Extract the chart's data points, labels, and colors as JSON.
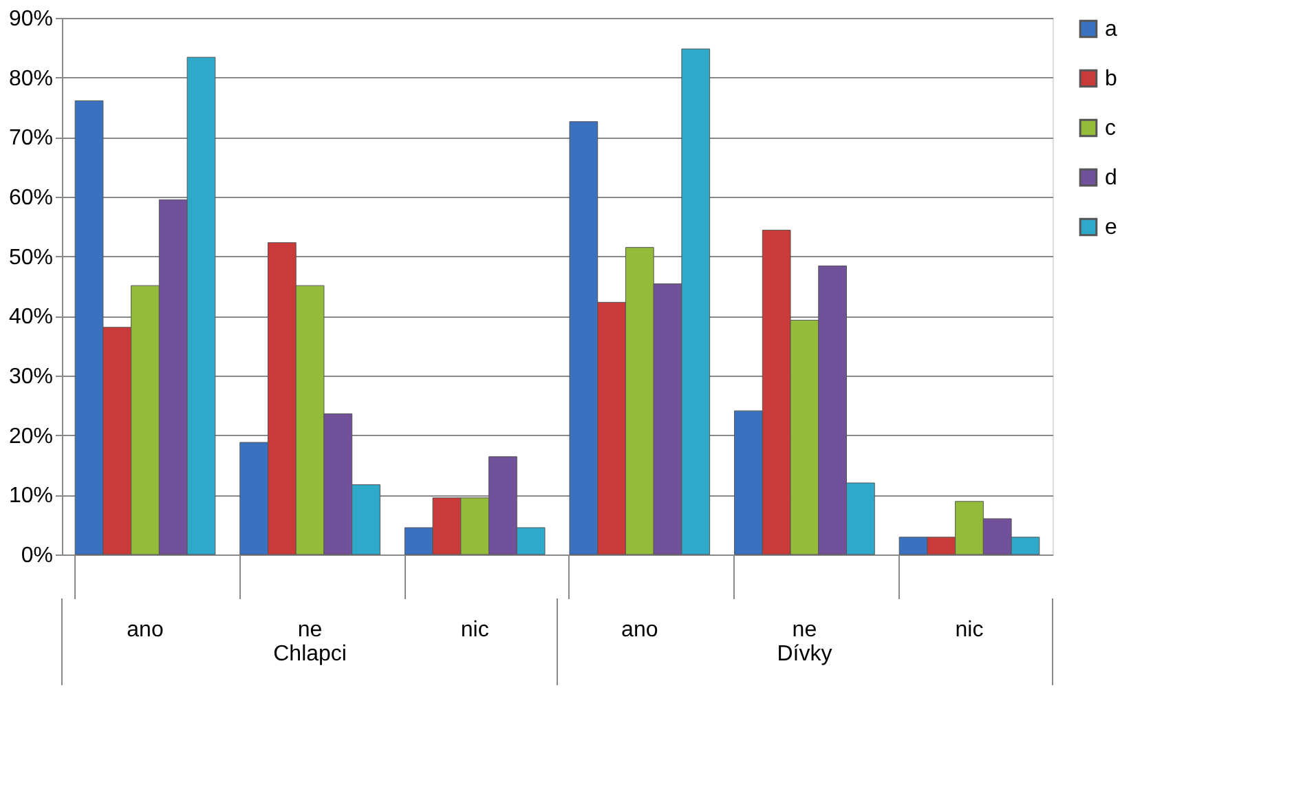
{
  "chart_data": {
    "type": "bar",
    "categories": [
      "ano",
      "ne",
      "nic",
      "ano",
      "ne",
      "nic"
    ],
    "series": [
      {
        "name": "a",
        "color": "#3a72c0",
        "values": [
          76.1,
          18.8,
          4.5,
          72.6,
          24.1,
          2.9
        ]
      },
      {
        "name": "b",
        "color": "#c93a38",
        "values": [
          38.1,
          52.3,
          9.5,
          42.3,
          54.4,
          2.9
        ]
      },
      {
        "name": "c",
        "color": "#94bb3a",
        "values": [
          45.1,
          45.1,
          9.5,
          51.5,
          39.3,
          8.9
        ]
      },
      {
        "name": "d",
        "color": "#71529a",
        "values": [
          59.5,
          23.6,
          16.4,
          45.4,
          48.4,
          6.0
        ]
      },
      {
        "name": "e",
        "color": "#2fa9c9",
        "values": [
          83.4,
          11.7,
          4.5,
          84.8,
          12.0,
          2.9
        ]
      }
    ],
    "annotations": [
      "Chlapci",
      "Dívky"
    ],
    "ylim": [
      0,
      90
    ],
    "yticks": [
      {
        "value": 0,
        "label": "0%"
      },
      {
        "value": 10,
        "label": "10%"
      },
      {
        "value": 20,
        "label": "20%"
      },
      {
        "value": 30,
        "label": "30%"
      },
      {
        "value": 40,
        "label": "40%"
      },
      {
        "value": 50,
        "label": "50%"
      },
      {
        "value": 60,
        "label": "60%"
      },
      {
        "value": 70,
        "label": "70%"
      },
      {
        "value": 80,
        "label": "80%"
      },
      {
        "value": 90,
        "label": "90%"
      }
    ],
    "grid": "y",
    "legend": "right"
  }
}
